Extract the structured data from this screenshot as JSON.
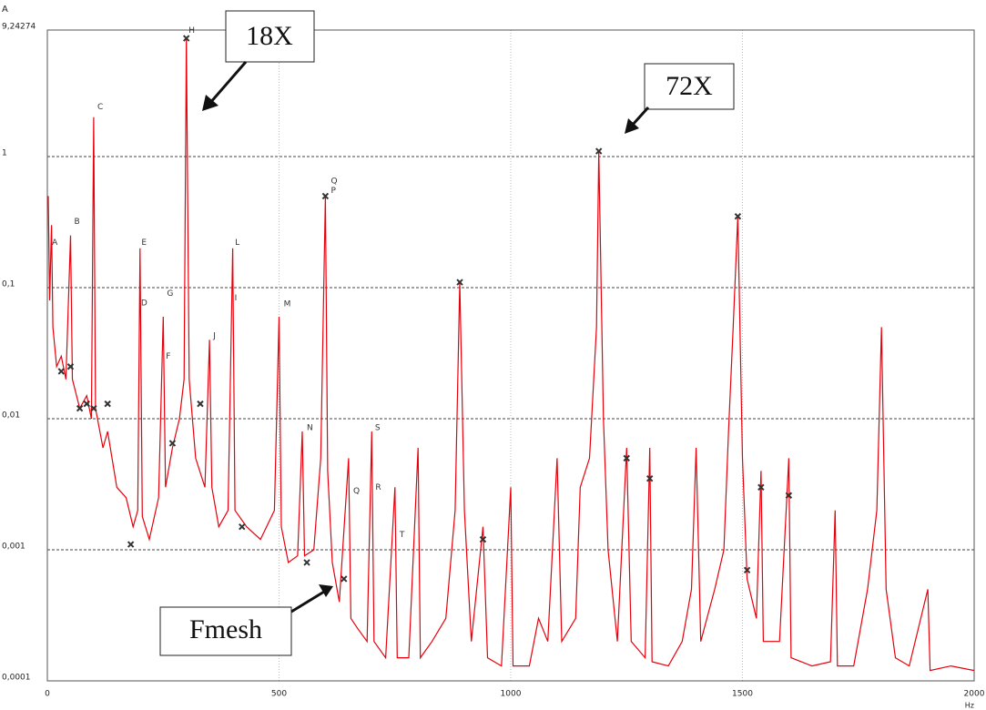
{
  "chart_data": {
    "type": "line",
    "y_axis_label": "A",
    "x_axis_label": "Hz",
    "log_y": true,
    "grid": true,
    "xlim": [
      0,
      2000
    ],
    "ylim": [
      0.0001,
      9.24274
    ],
    "xticks": [
      0,
      500,
      1000,
      1500,
      2000
    ],
    "yticks": [
      {
        "value": 0.0001,
        "label": "0,0001"
      },
      {
        "value": 0.001,
        "label": "0,001"
      },
      {
        "value": 0.01,
        "label": "0,01"
      },
      {
        "value": 0.1,
        "label": "0,1"
      },
      1,
      {
        "value": 9.24274,
        "label": "9,24274"
      }
    ],
    "x": [
      2,
      5,
      9,
      12,
      20,
      30,
      40,
      50,
      54,
      70,
      85,
      95,
      100,
      104,
      120,
      130,
      150,
      170,
      185,
      195,
      200,
      205,
      220,
      240,
      250,
      255,
      270,
      285,
      295,
      300,
      306,
      320,
      340,
      350,
      355,
      370,
      390,
      400,
      405,
      430,
      460,
      490,
      500,
      505,
      520,
      540,
      550,
      555,
      575,
      590,
      600,
      605,
      615,
      630,
      650,
      655,
      670,
      690,
      700,
      705,
      730,
      750,
      755,
      780,
      800,
      805,
      830,
      860,
      880,
      890,
      900,
      915,
      940,
      950,
      980,
      1000,
      1005,
      1040,
      1060,
      1080,
      1100,
      1110,
      1140,
      1150,
      1170,
      1185,
      1190,
      1200,
      1210,
      1230,
      1250,
      1260,
      1290,
      1300,
      1305,
      1340,
      1370,
      1390,
      1400,
      1410,
      1440,
      1460,
      1470,
      1480,
      1490,
      1500,
      1510,
      1530,
      1540,
      1545,
      1580,
      1600,
      1605,
      1650,
      1690,
      1700,
      1705,
      1740,
      1770,
      1790,
      1800,
      1810,
      1830,
      1860,
      1900,
      1905,
      1950,
      2000
    ],
    "series": [
      {
        "color": "#e8000b",
        "values": [
          0.5,
          0.08,
          0.3,
          0.05,
          0.025,
          0.03,
          0.02,
          0.25,
          0.02,
          0.012,
          0.015,
          0.01,
          2.0,
          0.012,
          0.006,
          0.008,
          0.003,
          0.0025,
          0.0015,
          0.002,
          0.2,
          0.0018,
          0.0012,
          0.0025,
          0.06,
          0.003,
          0.006,
          0.01,
          0.02,
          8.0,
          0.02,
          0.005,
          0.003,
          0.04,
          0.003,
          0.0015,
          0.002,
          0.2,
          0.002,
          0.0015,
          0.0012,
          0.002,
          0.06,
          0.0015,
          0.0008,
          0.0009,
          0.008,
          0.0009,
          0.001,
          0.005,
          0.5,
          0.004,
          0.0008,
          0.0004,
          0.005,
          0.0003,
          0.00025,
          0.0002,
          0.008,
          0.0002,
          0.00015,
          0.003,
          0.00015,
          0.00015,
          0.006,
          0.00015,
          0.0002,
          0.0003,
          0.002,
          0.11,
          0.002,
          0.0002,
          0.0015,
          0.00015,
          0.00013,
          0.003,
          0.00013,
          0.00013,
          0.0003,
          0.0002,
          0.005,
          0.0002,
          0.0003,
          0.003,
          0.005,
          0.05,
          1.1,
          0.01,
          0.001,
          0.0002,
          0.006,
          0.0002,
          0.00015,
          0.006,
          0.00014,
          0.00013,
          0.0002,
          0.0005,
          0.006,
          0.0002,
          0.0005,
          0.001,
          0.008,
          0.05,
          0.35,
          0.005,
          0.0006,
          0.0003,
          0.004,
          0.0002,
          0.0002,
          0.005,
          0.00015,
          0.00013,
          0.00014,
          0.002,
          0.00013,
          0.00013,
          0.0005,
          0.002,
          0.05,
          0.0005,
          0.00015,
          0.00013,
          0.0005,
          0.00012,
          0.00013,
          0.00012
        ]
      }
    ],
    "markers": {
      "x": [
        30,
        50,
        70,
        85,
        100,
        130,
        180,
        270,
        300,
        330,
        420,
        560,
        600,
        640,
        890,
        940,
        1190,
        1250,
        1300,
        1490,
        1510,
        1540,
        1600
      ],
      "values": [
        0.023,
        0.025,
        0.012,
        0.013,
        0.012,
        0.013,
        0.0011,
        0.0065,
        8.0,
        0.013,
        0.0015,
        0.0008,
        0.5,
        0.0006,
        0.11,
        0.0012,
        1.1,
        0.005,
        0.0035,
        0.35,
        0.0007,
        0.003,
        0.0026
      ]
    },
    "peak_labels": [
      {
        "text": "A",
        "x": 10,
        "y": 0.22
      },
      {
        "text": "B",
        "x": 58,
        "y": 0.32
      },
      {
        "text": "C",
        "x": 108,
        "y": 2.4
      },
      {
        "text": "D",
        "x": 202,
        "y": 0.076
      },
      {
        "text": "E",
        "x": 203,
        "y": 0.22
      },
      {
        "text": "F",
        "x": 256,
        "y": 0.03
      },
      {
        "text": "G",
        "x": 258,
        "y": 0.09
      },
      {
        "text": "H",
        "x": 305,
        "y": 9.2
      },
      {
        "text": "I",
        "x": 404,
        "y": 0.083
      },
      {
        "text": "J",
        "x": 358,
        "y": 0.043
      },
      {
        "text": "L",
        "x": 405,
        "y": 0.22
      },
      {
        "text": "M",
        "x": 510,
        "y": 0.075
      },
      {
        "text": "N",
        "x": 560,
        "y": 0.0085
      },
      {
        "text": "Q",
        "x": 612,
        "y": 0.65
      },
      {
        "text": "P",
        "x": 612,
        "y": 0.55
      },
      {
        "text": "Q",
        "x": 660,
        "y": 0.0028
      },
      {
        "text": "S",
        "x": 707,
        "y": 0.0085
      },
      {
        "text": "R",
        "x": 708,
        "y": 0.003
      },
      {
        "text": "T",
        "x": 760,
        "y": 0.0013
      }
    ],
    "callouts": [
      "18X",
      "72X",
      "Fmesh"
    ]
  }
}
